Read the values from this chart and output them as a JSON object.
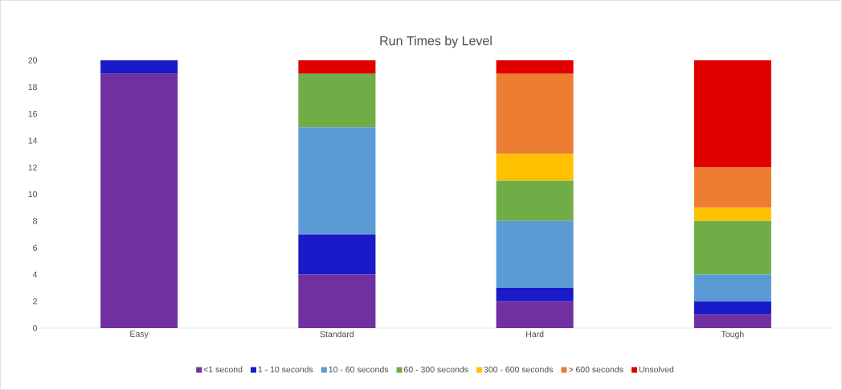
{
  "chart_data": {
    "type": "bar",
    "title": "Run Times by Level",
    "stacked": true,
    "legend": "bottom",
    "categories": [
      "Easy",
      "Standard",
      "Hard",
      "Tough"
    ],
    "ylim": [
      0,
      20
    ],
    "yticks": [
      0,
      2,
      4,
      6,
      8,
      10,
      12,
      14,
      16,
      18,
      20
    ],
    "series": [
      {
        "name": "<1 second",
        "color": "#7030a0",
        "values": [
          19,
          4,
          2,
          1
        ]
      },
      {
        "name": "1 - 10 seconds",
        "color": "#1a1ac8",
        "values": [
          1,
          3,
          1,
          1
        ]
      },
      {
        "name": "10 - 60 seconds",
        "color": "#5b9bd5",
        "values": [
          0,
          8,
          5,
          2
        ]
      },
      {
        "name": "60 - 300 seconds",
        "color": "#70ad47",
        "values": [
          0,
          4,
          3,
          4
        ]
      },
      {
        "name": "300 - 600 seconds",
        "color": "#ffc000",
        "values": [
          0,
          0,
          2,
          1
        ]
      },
      {
        "name": "> 600 seconds",
        "color": "#ed7d31",
        "values": [
          0,
          0,
          6,
          3
        ]
      },
      {
        "name": "Unsolved",
        "color": "#e00000",
        "values": [
          0,
          1,
          1,
          8
        ]
      }
    ]
  }
}
